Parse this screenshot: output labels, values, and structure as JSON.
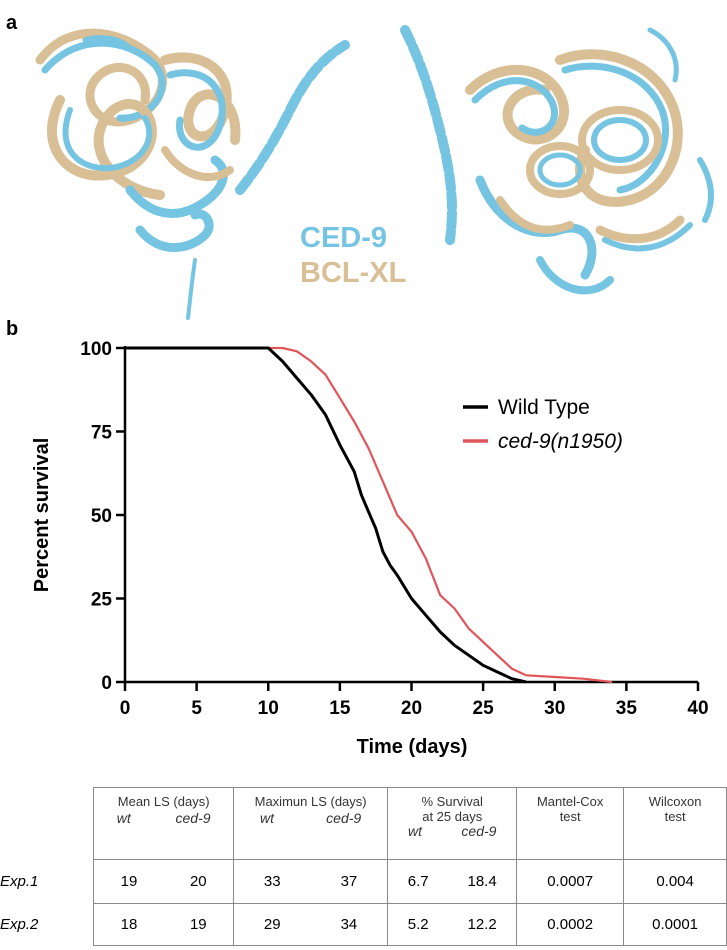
{
  "figure": {
    "panel_a_label": "a",
    "panel_b_label": "b",
    "structure_legend": [
      {
        "name": "CED-9",
        "color": "#74c4e2"
      },
      {
        "name": "BCL-XL",
        "color": "#d9bf95"
      }
    ]
  },
  "chart_data": {
    "type": "line",
    "xlabel": "Time (days)",
    "ylabel": "Percent survival",
    "xlim": [
      0,
      40
    ],
    "ylim": [
      0,
      100
    ],
    "xticks": [
      0,
      5,
      10,
      15,
      20,
      25,
      30,
      35,
      40
    ],
    "yticks": [
      0,
      25,
      50,
      75,
      100
    ],
    "legend_position": "top-right",
    "series": [
      {
        "name": "Wild Type",
        "color": "#000000",
        "x": [
          0,
          10,
          11,
          12,
          13,
          14,
          15,
          16,
          16.5,
          17,
          17.5,
          18,
          18.5,
          19,
          20,
          21,
          22,
          23,
          24,
          25,
          26,
          27,
          28
        ],
        "y": [
          100,
          100,
          96,
          91,
          86,
          80,
          71,
          63,
          56,
          51,
          46,
          39,
          35,
          32,
          25,
          20,
          15,
          11,
          8,
          5,
          3,
          1,
          0
        ]
      },
      {
        "name": "ced-9(n1950)",
        "color": "#e0555a",
        "x": [
          0,
          11,
          12,
          13,
          14,
          15,
          16,
          17,
          18,
          19,
          20,
          21,
          22,
          23,
          24,
          25,
          26,
          27,
          28,
          30,
          32,
          34
        ],
        "y": [
          100,
          100,
          99,
          96,
          92,
          85,
          78,
          70,
          60,
          50,
          45,
          37,
          26,
          22,
          16,
          12,
          8,
          4,
          2,
          1.5,
          1,
          0
        ]
      }
    ]
  },
  "table": {
    "headers": {
      "mean": "Mean LS (days)",
      "max": "Maximun LS (days)",
      "survival_line1": "% Survival",
      "survival_line2": "at 25 days",
      "mantel_line1": "Mantel-Cox",
      "mantel_line2": "test",
      "wilcoxon_line1": "Wilcoxon",
      "wilcoxon_line2": "test",
      "wt": "wt",
      "ced9": "ced-9"
    },
    "rows": [
      {
        "label": "Exp.1",
        "mean_wt": "19",
        "mean_ced9": "20",
        "max_wt": "33",
        "max_ced9": "37",
        "surv_wt": "6.7",
        "surv_ced9": "18.4",
        "mantel": "0.0007",
        "wilcoxon": "0.004"
      },
      {
        "label": "Exp.2",
        "mean_wt": "18",
        "mean_ced9": "19",
        "max_wt": "29",
        "max_ced9": "34",
        "surv_wt": "5.2",
        "surv_ced9": "12.2",
        "mantel": "0.0002",
        "wilcoxon": "0.0001"
      }
    ]
  }
}
